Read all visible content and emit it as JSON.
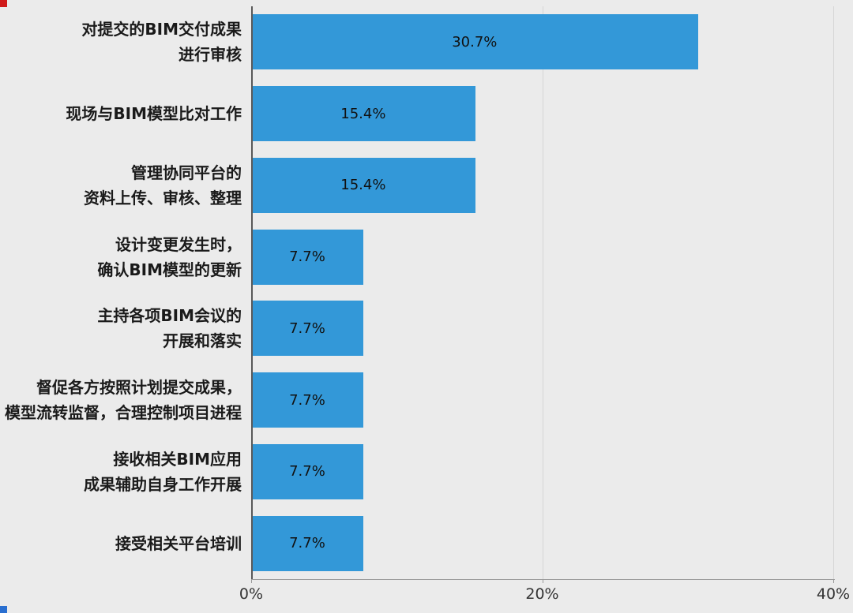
{
  "chart_data": {
    "type": "bar",
    "orientation": "horizontal",
    "title": "",
    "xlabel": "",
    "ylabel": "",
    "xlim": [
      0,
      40
    ],
    "grid": "vertical",
    "bar_color": "#3398d8",
    "plot_background": "#ebebeb",
    "x_ticks": [
      {
        "value": 0,
        "label": "0%"
      },
      {
        "value": 20,
        "label": "20%"
      },
      {
        "value": 40,
        "label": "40%"
      }
    ],
    "series": [
      {
        "label_lines": [
          "对提交的BIM交付成果",
          "进行审核"
        ],
        "value": 30.7,
        "value_label": "30.7%"
      },
      {
        "label_lines": [
          "现场与BIM模型比对工作"
        ],
        "value": 15.4,
        "value_label": "15.4%"
      },
      {
        "label_lines": [
          "管理协同平台的",
          "资料上传、审核、整理"
        ],
        "value": 15.4,
        "value_label": "15.4%"
      },
      {
        "label_lines": [
          "设计变更发生时，",
          "确认BIM模型的更新"
        ],
        "value": 7.7,
        "value_label": "7.7%"
      },
      {
        "label_lines": [
          "主持各项BIM会议的",
          "开展和落实"
        ],
        "value": 7.7,
        "value_label": "7.7%"
      },
      {
        "label_lines": [
          "督促各方按照计划提交成果，",
          "模型流转监督，合理控制项目进程"
        ],
        "value": 7.7,
        "value_label": "7.7%"
      },
      {
        "label_lines": [
          "接收相关BIM应用",
          "成果辅助自身工作开展"
        ],
        "value": 7.7,
        "value_label": "7.7%"
      },
      {
        "label_lines": [
          "接受相关平台培训"
        ],
        "value": 7.7,
        "value_label": "7.7%"
      }
    ]
  },
  "decorations": {
    "top_left_mark_color": "#d01a1a",
    "bottom_left_mark_color": "#2a6fd0"
  }
}
